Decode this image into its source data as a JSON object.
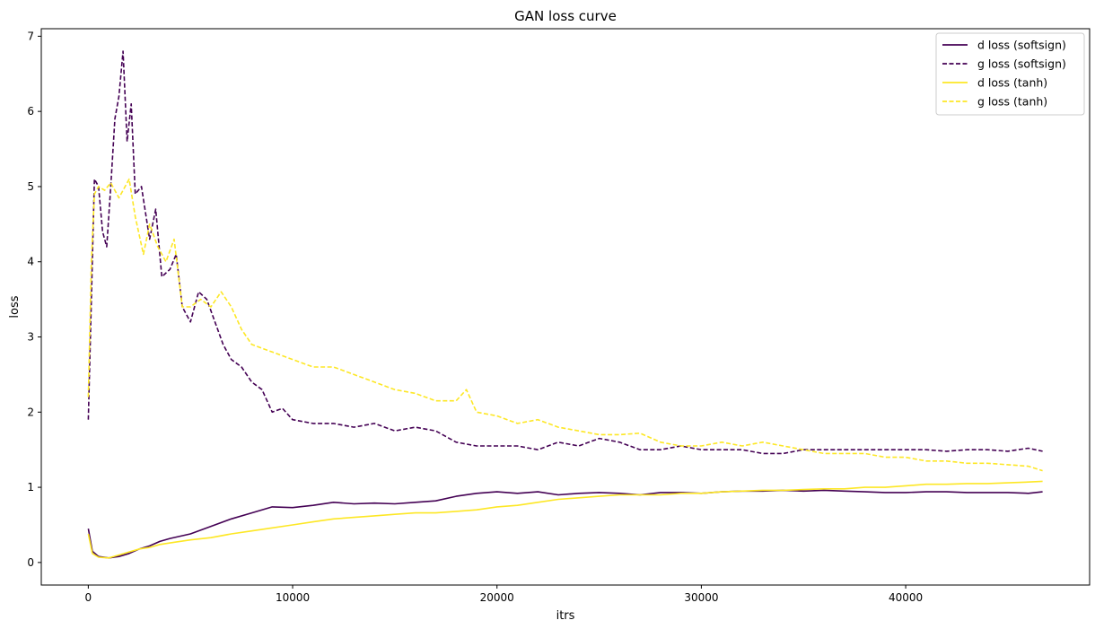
{
  "chart_data": {
    "type": "line",
    "title": "GAN loss curve",
    "xlabel": "itrs",
    "ylabel": "loss",
    "xlim": [
      -2300,
      49000
    ],
    "ylim": [
      -0.3,
      7.1
    ],
    "xticks": [
      0,
      10000,
      20000,
      30000,
      40000
    ],
    "xtick_labels": [
      "0",
      "10000",
      "20000",
      "30000",
      "40000"
    ],
    "yticks": [
      0,
      1,
      2,
      3,
      4,
      5,
      6,
      7
    ],
    "ytick_labels": [
      "0",
      "1",
      "2",
      "3",
      "4",
      "5",
      "6",
      "7"
    ],
    "grid": false,
    "legend_position": "top-right",
    "series": [
      {
        "name": "d loss (softsign)",
        "color": "#440154",
        "style": "solid",
        "x": [
          0,
          200,
          500,
          1000,
          1500,
          2000,
          2500,
          3000,
          3500,
          4000,
          5000,
          6000,
          7000,
          8000,
          9000,
          10000,
          11000,
          12000,
          13000,
          14000,
          15000,
          16000,
          17000,
          18000,
          19000,
          20000,
          21000,
          22000,
          23000,
          24000,
          25000,
          26000,
          27000,
          28000,
          29000,
          30000,
          31000,
          32000,
          33000,
          34000,
          35000,
          36000,
          37000,
          38000,
          39000,
          40000,
          41000,
          42000,
          43000,
          44000,
          45000,
          46000,
          46700
        ],
        "y": [
          0.45,
          0.15,
          0.08,
          0.06,
          0.08,
          0.12,
          0.18,
          0.22,
          0.28,
          0.32,
          0.38,
          0.48,
          0.58,
          0.66,
          0.74,
          0.73,
          0.76,
          0.8,
          0.78,
          0.79,
          0.78,
          0.8,
          0.82,
          0.88,
          0.92,
          0.94,
          0.92,
          0.94,
          0.9,
          0.92,
          0.93,
          0.92,
          0.9,
          0.93,
          0.93,
          0.92,
          0.94,
          0.95,
          0.95,
          0.96,
          0.95,
          0.96,
          0.95,
          0.94,
          0.93,
          0.93,
          0.94,
          0.94,
          0.93,
          0.93,
          0.93,
          0.92,
          0.94
        ]
      },
      {
        "name": "g loss (softsign)",
        "color": "#440154",
        "style": "dashed",
        "x": [
          0,
          150,
          300,
          500,
          700,
          900,
          1100,
          1300,
          1500,
          1700,
          1900,
          2100,
          2300,
          2600,
          3000,
          3300,
          3600,
          4000,
          4300,
          4600,
          5000,
          5400,
          5800,
          6200,
          6600,
          7000,
          7500,
          8000,
          8500,
          9000,
          9500,
          10000,
          11000,
          12000,
          13000,
          14000,
          15000,
          16000,
          17000,
          18000,
          19000,
          20000,
          21000,
          22000,
          23000,
          24000,
          25000,
          26000,
          27000,
          28000,
          29000,
          30000,
          31000,
          32000,
          33000,
          34000,
          35000,
          36000,
          37000,
          38000,
          39000,
          40000,
          41000,
          42000,
          43000,
          44000,
          45000,
          46000,
          46700
        ],
        "y": [
          1.9,
          3.5,
          5.1,
          5.0,
          4.4,
          4.2,
          5.0,
          5.9,
          6.2,
          6.8,
          5.6,
          6.1,
          4.9,
          5.0,
          4.3,
          4.7,
          3.8,
          3.9,
          4.1,
          3.4,
          3.2,
          3.6,
          3.5,
          3.2,
          2.9,
          2.7,
          2.6,
          2.4,
          2.3,
          2.0,
          2.05,
          1.9,
          1.85,
          1.85,
          1.8,
          1.85,
          1.75,
          1.8,
          1.75,
          1.6,
          1.55,
          1.55,
          1.55,
          1.5,
          1.6,
          1.55,
          1.65,
          1.6,
          1.5,
          1.5,
          1.55,
          1.5,
          1.5,
          1.5,
          1.45,
          1.45,
          1.5,
          1.5,
          1.5,
          1.5,
          1.5,
          1.5,
          1.5,
          1.48,
          1.5,
          1.5,
          1.48,
          1.52,
          1.48
        ]
      },
      {
        "name": "d loss (tanh)",
        "color": "#fde725",
        "style": "solid",
        "x": [
          0,
          200,
          500,
          1000,
          1500,
          2000,
          2500,
          3000,
          3500,
          4000,
          5000,
          6000,
          7000,
          8000,
          9000,
          10000,
          11000,
          12000,
          13000,
          14000,
          15000,
          16000,
          17000,
          18000,
          19000,
          20000,
          21000,
          22000,
          23000,
          24000,
          25000,
          26000,
          27000,
          28000,
          29000,
          30000,
          31000,
          32000,
          33000,
          34000,
          35000,
          36000,
          37000,
          38000,
          39000,
          40000,
          41000,
          42000,
          43000,
          44000,
          45000,
          46000,
          46700
        ],
        "y": [
          0.38,
          0.12,
          0.07,
          0.06,
          0.1,
          0.14,
          0.18,
          0.2,
          0.24,
          0.26,
          0.3,
          0.33,
          0.38,
          0.42,
          0.46,
          0.5,
          0.54,
          0.58,
          0.6,
          0.62,
          0.64,
          0.66,
          0.66,
          0.68,
          0.7,
          0.74,
          0.76,
          0.8,
          0.84,
          0.86,
          0.88,
          0.9,
          0.9,
          0.9,
          0.92,
          0.92,
          0.94,
          0.95,
          0.96,
          0.96,
          0.97,
          0.98,
          0.98,
          1.0,
          1.0,
          1.02,
          1.04,
          1.04,
          1.05,
          1.05,
          1.06,
          1.07,
          1.08
        ]
      },
      {
        "name": "g loss (tanh)",
        "color": "#fde725",
        "style": "dashed",
        "x": [
          0,
          150,
          300,
          500,
          800,
          1100,
          1500,
          2000,
          2300,
          2700,
          3000,
          3400,
          3800,
          4200,
          4600,
          5000,
          5500,
          6000,
          6500,
          7000,
          7500,
          8000,
          9000,
          10000,
          11000,
          12000,
          13000,
          14000,
          15000,
          16000,
          17000,
          18000,
          18500,
          19000,
          20000,
          21000,
          22000,
          23000,
          24000,
          25000,
          26000,
          27000,
          28000,
          29000,
          30000,
          31000,
          32000,
          33000,
          34000,
          35000,
          36000,
          37000,
          38000,
          39000,
          40000,
          41000,
          42000,
          43000,
          44000,
          45000,
          46000,
          46700
        ],
        "y": [
          2.2,
          4.0,
          4.9,
          5.0,
          4.95,
          5.05,
          4.85,
          5.1,
          4.6,
          4.1,
          4.5,
          4.2,
          4.0,
          4.3,
          3.4,
          3.4,
          3.5,
          3.4,
          3.6,
          3.4,
          3.1,
          2.9,
          2.8,
          2.7,
          2.6,
          2.6,
          2.5,
          2.4,
          2.3,
          2.25,
          2.15,
          2.15,
          2.3,
          2.0,
          1.95,
          1.85,
          1.9,
          1.8,
          1.75,
          1.7,
          1.7,
          1.72,
          1.6,
          1.55,
          1.55,
          1.6,
          1.55,
          1.6,
          1.55,
          1.5,
          1.45,
          1.45,
          1.45,
          1.4,
          1.4,
          1.35,
          1.35,
          1.32,
          1.32,
          1.3,
          1.28,
          1.22
        ]
      }
    ]
  }
}
